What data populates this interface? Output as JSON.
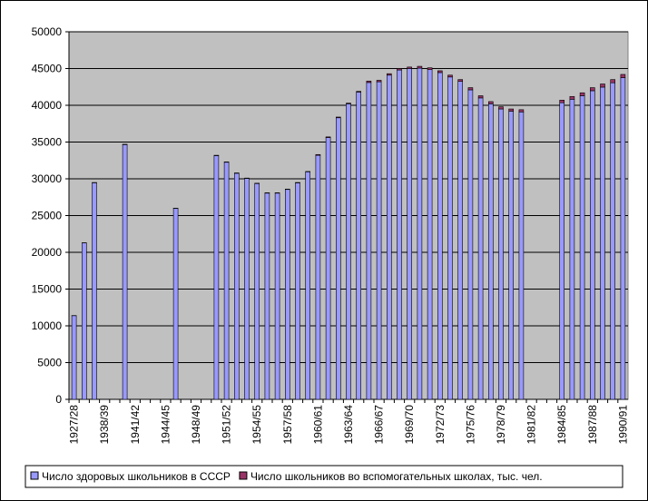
{
  "chart_data": {
    "type": "stacked_bar",
    "categories": [
      "1927/28",
      null,
      null,
      "1938/39",
      null,
      null,
      "1941/42",
      null,
      null,
      "1944/45",
      null,
      null,
      "1948/49",
      null,
      null,
      "1951/52",
      null,
      null,
      "1954/55",
      null,
      null,
      "1957/58",
      null,
      null,
      "1960/61",
      null,
      null,
      "1963/64",
      null,
      null,
      "1966/67",
      null,
      null,
      "1969/70",
      null,
      null,
      "1972/73",
      null,
      null,
      "1975/76",
      null,
      null,
      "1978/79",
      null,
      null,
      "1981/82",
      null,
      null,
      "1984/85",
      null,
      null,
      "1987/88",
      null,
      null,
      "1990/91"
    ],
    "series": [
      {
        "name": "Число здоровых школьников в СССР",
        "color": "#9999ff",
        "values": [
          11380,
          21270,
          29460,
          null,
          null,
          34650,
          null,
          null,
          null,
          null,
          25960,
          null,
          null,
          null,
          33150,
          32250,
          30750,
          30050,
          29350,
          28050,
          28050,
          28550,
          29450,
          30950,
          33200,
          35600,
          38300,
          40200,
          41800,
          43100,
          43200,
          44100,
          44800,
          45000,
          45050,
          44850,
          44450,
          43850,
          43250,
          42100,
          41000,
          40200,
          39500,
          39200,
          39100,
          null,
          null,
          null,
          40350,
          40820,
          41300,
          41980,
          42470,
          43060,
          43750
        ]
      },
      {
        "name": "Число школьников во вспомогательных школах, тыс. чел.",
        "color": "#993366",
        "values": [
          20,
          30,
          40,
          null,
          null,
          50,
          null,
          null,
          null,
          null,
          40,
          null,
          null,
          null,
          50,
          50,
          50,
          50,
          50,
          50,
          50,
          50,
          50,
          50,
          100,
          100,
          100,
          100,
          100,
          200,
          200,
          200,
          200,
          200,
          250,
          250,
          250,
          250,
          250,
          300,
          300,
          300,
          300,
          300,
          300,
          null,
          null,
          null,
          350,
          380,
          400,
          420,
          430,
          440,
          450
        ]
      }
    ],
    "ylim": [
      0,
      50000
    ],
    "yticks": [
      0,
      5000,
      10000,
      15000,
      20000,
      25000,
      30000,
      35000,
      40000,
      45000,
      50000
    ],
    "grid": true,
    "legend": "bottom",
    "background": "#c0c0c0"
  }
}
